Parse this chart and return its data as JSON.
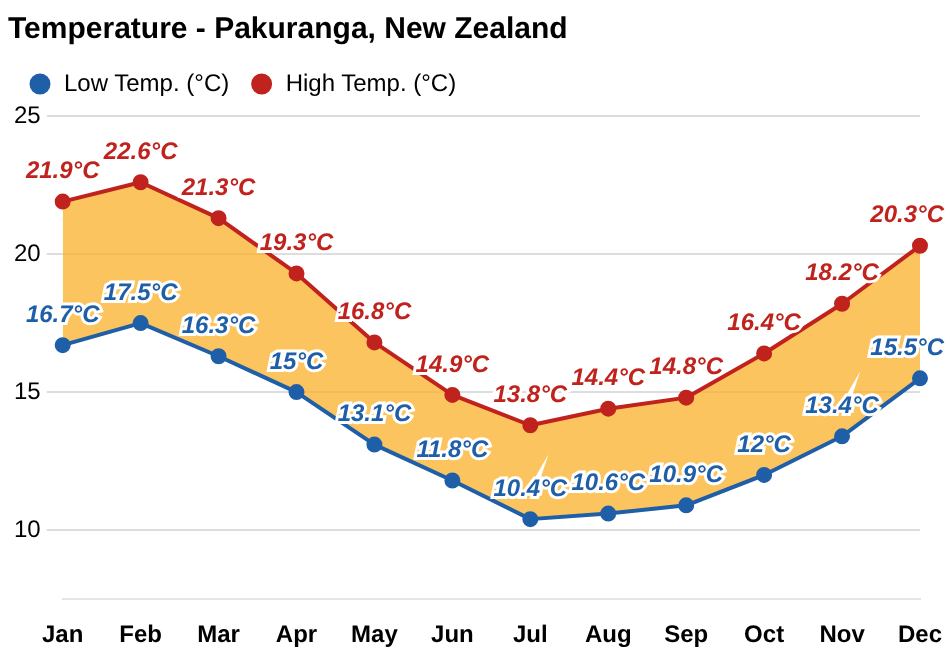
{
  "chart_data": {
    "type": "line",
    "title": "Temperature - Pakuranga, New Zealand",
    "categories": [
      "Jan",
      "Feb",
      "Mar",
      "Apr",
      "May",
      "Jun",
      "Jul",
      "Aug",
      "Sep",
      "Oct",
      "Nov",
      "Dec"
    ],
    "series": [
      {
        "name": "Low Temp. (°C)",
        "color": "#1f5fa8",
        "values": [
          16.7,
          17.5,
          16.3,
          15,
          13.1,
          11.8,
          10.4,
          10.6,
          10.9,
          12,
          13.4,
          15.5
        ],
        "value_labels": [
          "16.7°C",
          "17.5°C",
          "16.3°C",
          "15°C",
          "13.1°C",
          "11.8°C",
          "10.4°C",
          "10.6°C",
          "10.9°C",
          "12°C",
          "13.4°C",
          "15.5°C"
        ]
      },
      {
        "name": "High Temp. (°C)",
        "color": "#c0231d",
        "values": [
          21.9,
          22.6,
          21.3,
          19.3,
          16.8,
          14.9,
          13.8,
          14.4,
          14.8,
          16.4,
          18.2,
          20.3
        ],
        "value_labels": [
          "21.9°C",
          "22.6°C",
          "21.3°C",
          "19.3°C",
          "16.8°C",
          "14.9°C",
          "13.8°C",
          "14.4°C",
          "14.8°C",
          "16.4°C",
          "18.2°C",
          "20.3°C"
        ]
      }
    ],
    "ylim": [
      7.5,
      25
    ],
    "yticks": [
      10,
      15,
      20,
      25
    ],
    "grid": "y",
    "legend": "top left",
    "marker": "circle",
    "line_style": "solid"
  }
}
